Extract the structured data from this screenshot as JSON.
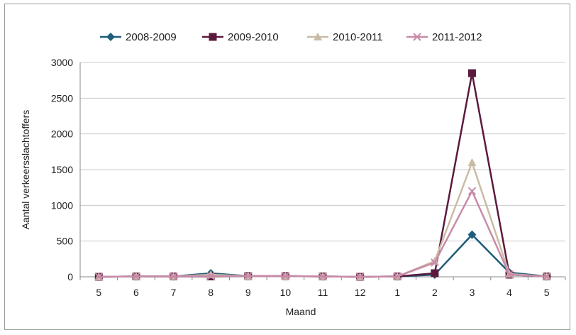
{
  "chart_data": {
    "type": "line",
    "xlabel": "Maand",
    "ylabel": "Aantal verkeersslachtoffers",
    "categories": [
      "5",
      "6",
      "7",
      "8",
      "9",
      "10",
      "11",
      "12",
      "1",
      "2",
      "3",
      "4",
      "5"
    ],
    "ylim": [
      0,
      3000
    ],
    "yticks": [
      0,
      500,
      1000,
      1500,
      2000,
      2500,
      3000
    ],
    "grid": true,
    "legend_position": "top",
    "series": [
      {
        "name": "2008-2009",
        "color": "#1f5d7a",
        "marker": "diamond",
        "values": [
          0,
          5,
          5,
          50,
          10,
          10,
          5,
          0,
          5,
          30,
          590,
          60,
          5
        ]
      },
      {
        "name": "2009-2010",
        "color": "#5b1a3d",
        "marker": "square",
        "values": [
          0,
          5,
          5,
          5,
          10,
          10,
          5,
          0,
          5,
          50,
          2850,
          30,
          5
        ]
      },
      {
        "name": "2010-2011",
        "color": "#c9bca6",
        "marker": "triangle",
        "values": [
          0,
          5,
          5,
          30,
          10,
          10,
          5,
          0,
          5,
          220,
          1600,
          40,
          5
        ]
      },
      {
        "name": "2011-2012",
        "color": "#c98aa8",
        "marker": "star",
        "values": [
          0,
          5,
          5,
          10,
          10,
          10,
          5,
          0,
          5,
          200,
          1200,
          30,
          5
        ]
      }
    ]
  }
}
